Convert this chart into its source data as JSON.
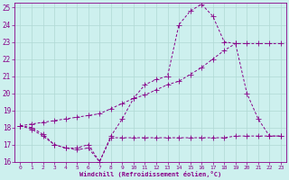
{
  "xlabel": "Windchill (Refroidissement éolien,°C)",
  "background_color": "#cdf0ee",
  "grid_color": "#b0d8d4",
  "line_color": "#880088",
  "xlim": [
    -0.5,
    23.5
  ],
  "ylim": [
    16,
    25.3
  ],
  "yticks": [
    16,
    17,
    18,
    19,
    20,
    21,
    22,
    23,
    24,
    25
  ],
  "xticks": [
    0,
    1,
    2,
    3,
    4,
    5,
    6,
    7,
    8,
    9,
    10,
    11,
    12,
    13,
    14,
    15,
    16,
    17,
    18,
    19,
    20,
    21,
    22,
    23
  ],
  "line1_x": [
    0,
    1,
    2,
    3,
    4,
    5,
    6,
    7,
    8,
    9,
    10,
    11,
    12,
    13,
    14,
    15,
    16,
    17,
    18,
    19,
    20,
    21,
    22,
    23
  ],
  "line1_y": [
    18.1,
    17.9,
    17.5,
    17.0,
    16.8,
    16.7,
    16.8,
    16.0,
    17.4,
    17.4,
    17.4,
    17.4,
    17.4,
    17.4,
    17.4,
    17.4,
    17.4,
    17.4,
    17.4,
    17.5,
    17.5,
    17.5,
    17.5,
    17.5
  ],
  "line2_x": [
    0,
    1,
    2,
    3,
    4,
    5,
    6,
    7,
    8,
    9,
    10,
    11,
    12,
    13,
    14,
    15,
    16,
    17,
    18,
    19,
    20,
    21,
    22,
    23
  ],
  "line2_y": [
    18.1,
    18.0,
    17.6,
    17.0,
    16.8,
    16.8,
    17.0,
    16.0,
    17.5,
    18.5,
    19.7,
    20.5,
    20.8,
    21.0,
    24.0,
    24.8,
    25.2,
    24.5,
    23.0,
    22.9,
    20.0,
    18.5,
    17.5,
    17.5
  ],
  "line3_x": [
    0,
    1,
    2,
    3,
    4,
    5,
    6,
    7,
    8,
    9,
    10,
    11,
    12,
    13,
    14,
    15,
    16,
    17,
    18,
    19,
    20,
    21,
    22,
    23
  ],
  "line3_y": [
    18.1,
    18.2,
    18.3,
    18.4,
    18.5,
    18.6,
    18.7,
    18.8,
    19.1,
    19.4,
    19.7,
    19.9,
    20.2,
    20.5,
    20.7,
    21.1,
    21.5,
    22.0,
    22.5,
    22.9,
    22.9,
    22.9,
    22.9,
    22.9
  ]
}
